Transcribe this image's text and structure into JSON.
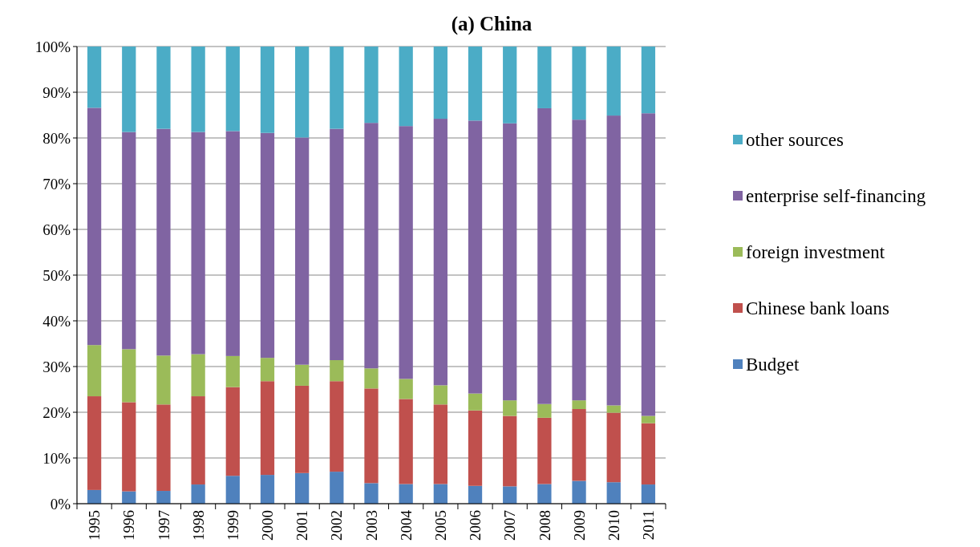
{
  "chart_data": {
    "type": "bar",
    "title": "(a) China",
    "stacked": true,
    "grid": "y",
    "legend": "right",
    "categories": [
      "1995",
      "1996",
      "1997",
      "1998",
      "1999",
      "2000",
      "2001",
      "2002",
      "2003",
      "2004",
      "2005",
      "2006",
      "2007",
      "2008",
      "2009",
      "2010",
      "2011"
    ],
    "ylim": [
      0,
      100
    ],
    "yticks": [
      {
        "value": 0,
        "label": "0%"
      },
      {
        "value": 10,
        "label": "10%"
      },
      {
        "value": 20,
        "label": "20%"
      },
      {
        "value": 30,
        "label": "30%"
      },
      {
        "value": 40,
        "label": "40%"
      },
      {
        "value": 50,
        "label": "50%"
      },
      {
        "value": 60,
        "label": "60%"
      },
      {
        "value": 70,
        "label": "70%"
      },
      {
        "value": 80,
        "label": "80%"
      },
      {
        "value": 90,
        "label": "90%"
      },
      {
        "value": 100,
        "label": "100%"
      }
    ],
    "series": [
      {
        "name": "Budget",
        "color": "#4f81bd",
        "values": [
          3.0,
          2.7,
          2.8,
          4.2,
          6.1,
          6.3,
          6.7,
          7.0,
          4.5,
          4.3,
          4.3,
          3.9,
          3.8,
          4.3,
          5.0,
          4.7,
          4.2
        ]
      },
      {
        "name": "Chinese bank loans",
        "color": "#c0504d",
        "values": [
          20.5,
          19.5,
          18.9,
          19.3,
          19.4,
          20.5,
          19.1,
          19.8,
          20.7,
          18.6,
          17.4,
          16.5,
          15.4,
          14.5,
          15.7,
          15.2,
          13.4
        ]
      },
      {
        "name": "foreign investment",
        "color": "#9bbb59",
        "values": [
          11.2,
          11.6,
          10.7,
          9.2,
          6.8,
          5.1,
          4.6,
          4.6,
          4.4,
          4.4,
          4.2,
          3.7,
          3.4,
          3.0,
          1.9,
          1.6,
          1.6
        ]
      },
      {
        "name": "enterprise self-financing",
        "color": "#8064a2",
        "values": [
          51.9,
          47.5,
          49.6,
          48.6,
          49.2,
          49.2,
          49.7,
          50.6,
          53.7,
          55.3,
          58.3,
          59.7,
          60.6,
          64.7,
          61.4,
          63.4,
          66.2
        ]
      },
      {
        "name": "other sources",
        "color": "#4bacc6",
        "values": [
          13.4,
          18.7,
          18.0,
          18.7,
          18.5,
          18.9,
          19.9,
          18.0,
          16.7,
          17.4,
          15.8,
          16.2,
          16.8,
          13.5,
          16.0,
          15.1,
          14.6
        ]
      }
    ]
  }
}
